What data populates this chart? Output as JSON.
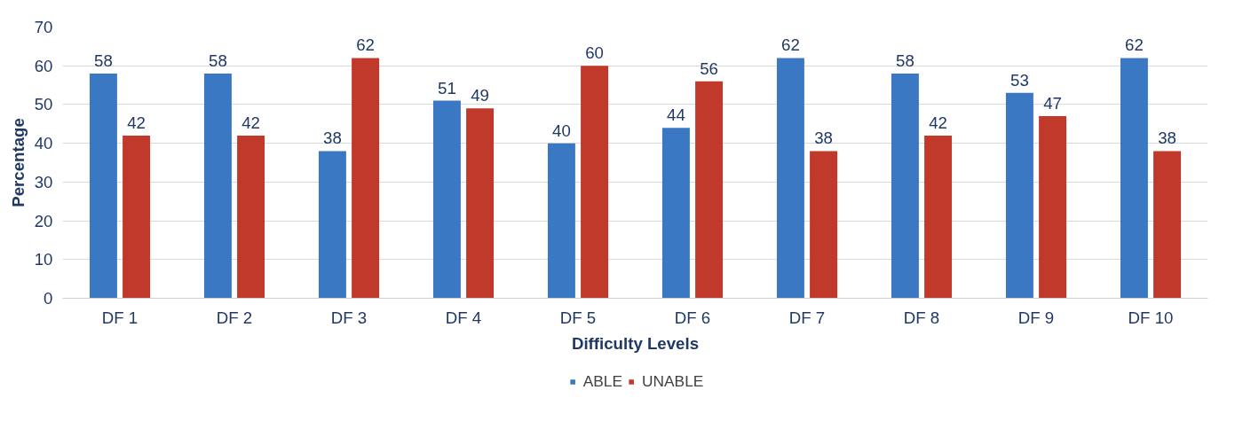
{
  "chart_data": {
    "type": "bar",
    "xlabel": "Difficulty Levels",
    "ylabel": "Percentage",
    "categories": [
      "DF 1",
      "DF 2",
      "DF 3",
      "DF 4",
      "DF 5",
      "DF 6",
      "DF 7",
      "DF 8",
      "DF 9",
      "DF 10"
    ],
    "series": [
      {
        "name": "ABLE",
        "color": "#3b78c4",
        "values": [
          58,
          58,
          38,
          51,
          40,
          44,
          62,
          58,
          53,
          62
        ]
      },
      {
        "name": "UNABLE",
        "color": "#c0392b",
        "values": [
          42,
          42,
          62,
          49,
          60,
          56,
          38,
          42,
          47,
          38
        ]
      }
    ],
    "ylim": [
      0,
      70
    ],
    "yticks": [
      0,
      10,
      20,
      30,
      40,
      50,
      60,
      70
    ],
    "grid": "y",
    "legend": "bottom",
    "data_labels": true
  }
}
